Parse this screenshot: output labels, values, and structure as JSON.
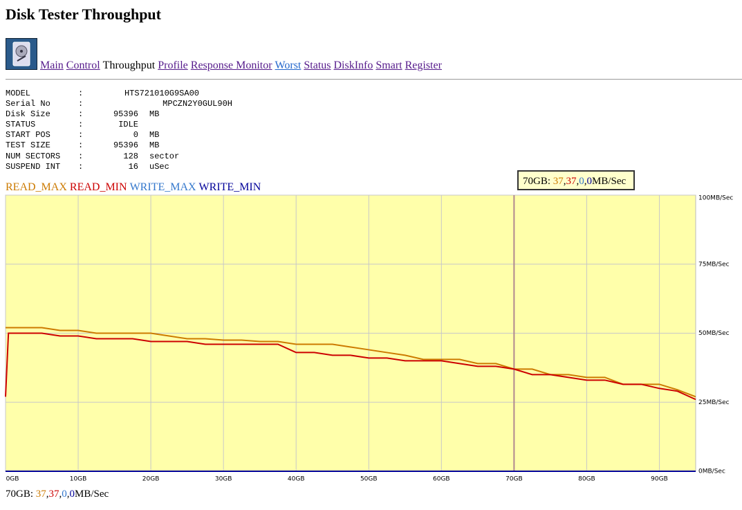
{
  "header": {
    "title": "Disk Tester Throughput",
    "nav": [
      {
        "label": "Main",
        "color": "#551a8b"
      },
      {
        "label": "Control",
        "color": "#551a8b"
      },
      {
        "label": "Throughput",
        "color": "#000000"
      },
      {
        "label": "Profile",
        "color": "#551a8b"
      },
      {
        "label": "Response Monitor",
        "color": "#551a8b"
      },
      {
        "label": "Worst",
        "color": "#2266cc"
      },
      {
        "label": "Status",
        "color": "#551a8b"
      },
      {
        "label": "DiskInfo",
        "color": "#551a8b"
      },
      {
        "label": "Smart",
        "color": "#551a8b"
      },
      {
        "label": "Register",
        "color": "#551a8b"
      }
    ]
  },
  "info": {
    "separator": ":",
    "rows": [
      {
        "label": "MODEL",
        "value": "HTS721010G9SA00"
      },
      {
        "label": "Serial No",
        "value": "MPCZN2Y0GUL90H"
      },
      {
        "label": "Disk Size",
        "value": 95396,
        "unit": "MB"
      },
      {
        "label": "STATUS",
        "value": "IDLE"
      },
      {
        "label": "START POS",
        "value": 0,
        "unit": "MB"
      },
      {
        "label": "TEST SIZE",
        "value": 95396,
        "unit": "MB"
      },
      {
        "label": "NUM SECTORS",
        "value": 128,
        "unit": "sector"
      },
      {
        "label": "SUSPEND INT",
        "value": 16,
        "unit": "uSec"
      }
    ]
  },
  "chart_data": {
    "type": "line",
    "x": [
      0,
      0.4,
      2.5,
      5,
      7.5,
      10,
      12.5,
      15,
      17.5,
      20,
      22.5,
      25,
      27.5,
      30,
      32.5,
      35,
      37.5,
      40,
      42.5,
      45,
      47.5,
      50,
      52.5,
      55,
      57.5,
      60,
      62.5,
      65,
      67.5,
      70,
      72.5,
      75,
      77.5,
      80,
      82.5,
      85,
      87.5,
      90,
      92.5,
      95
    ],
    "series": [
      {
        "name": "READ_MAX",
        "color": "#cc7a00",
        "values": [
          52,
          52,
          52,
          52,
          51,
          51,
          50,
          50,
          50,
          50,
          49,
          48,
          48,
          47.5,
          47.5,
          47,
          47,
          46,
          46,
          46,
          45,
          44,
          43,
          42,
          40.5,
          40.5,
          40.5,
          39,
          39,
          37,
          37,
          35,
          35,
          34,
          34,
          31.5,
          31.5,
          31.5,
          29.5,
          27
        ]
      },
      {
        "name": "READ_MIN",
        "color": "#cc0000",
        "values": [
          27,
          50,
          50,
          50,
          49,
          49,
          48,
          48,
          48,
          47,
          47,
          47,
          46,
          46,
          46,
          46,
          46,
          43,
          43,
          42,
          42,
          41,
          41,
          40,
          40,
          40,
          39,
          38,
          38,
          37,
          35,
          35,
          34,
          33,
          33,
          31.5,
          31.5,
          30,
          29,
          26
        ]
      },
      {
        "name": "WRITE_MAX",
        "color": "#3377cc",
        "values": [
          0,
          0,
          0,
          0,
          0,
          0,
          0,
          0,
          0,
          0,
          0,
          0,
          0,
          0,
          0,
          0,
          0,
          0,
          0,
          0,
          0,
          0,
          0,
          0,
          0,
          0,
          0,
          0,
          0,
          0,
          0,
          0,
          0,
          0,
          0,
          0,
          0,
          0,
          0,
          0
        ]
      },
      {
        "name": "WRITE_MIN",
        "color": "#000099",
        "values": [
          0,
          0,
          0,
          0,
          0,
          0,
          0,
          0,
          0,
          0,
          0,
          0,
          0,
          0,
          0,
          0,
          0,
          0,
          0,
          0,
          0,
          0,
          0,
          0,
          0,
          0,
          0,
          0,
          0,
          0,
          0,
          0,
          0,
          0,
          0,
          0,
          0,
          0,
          0,
          0
        ]
      }
    ],
    "xlim": [
      0,
      95
    ],
    "ylim": [
      0,
      100
    ],
    "xticks": [
      {
        "value": 0,
        "label": "0GB"
      },
      {
        "value": 10,
        "label": "10GB"
      },
      {
        "value": 20,
        "label": "20GB"
      },
      {
        "value": 30,
        "label": "30GB"
      },
      {
        "value": 40,
        "label": "40GB"
      },
      {
        "value": 50,
        "label": "50GB"
      },
      {
        "value": 60,
        "label": "60GB"
      },
      {
        "value": 70,
        "label": "70GB"
      },
      {
        "value": 80,
        "label": "80GB"
      },
      {
        "value": 90,
        "label": "90GB"
      }
    ],
    "yticks": [
      {
        "value": 0,
        "label": "0MB/Sec"
      },
      {
        "value": 25,
        "label": "25MB/Sec"
      },
      {
        "value": 50,
        "label": "50MB/Sec"
      },
      {
        "value": 75,
        "label": "75MB/Sec"
      },
      {
        "value": 100,
        "label": "100MB/Sec"
      }
    ],
    "grid": true,
    "background": "#ffffaa",
    "readout": {
      "x": 70,
      "label": "70GB:",
      "values": [
        37,
        37,
        0,
        0
      ],
      "separators": [
        ",",
        ",",
        ","
      ],
      "unit": "MB/Sec"
    }
  }
}
